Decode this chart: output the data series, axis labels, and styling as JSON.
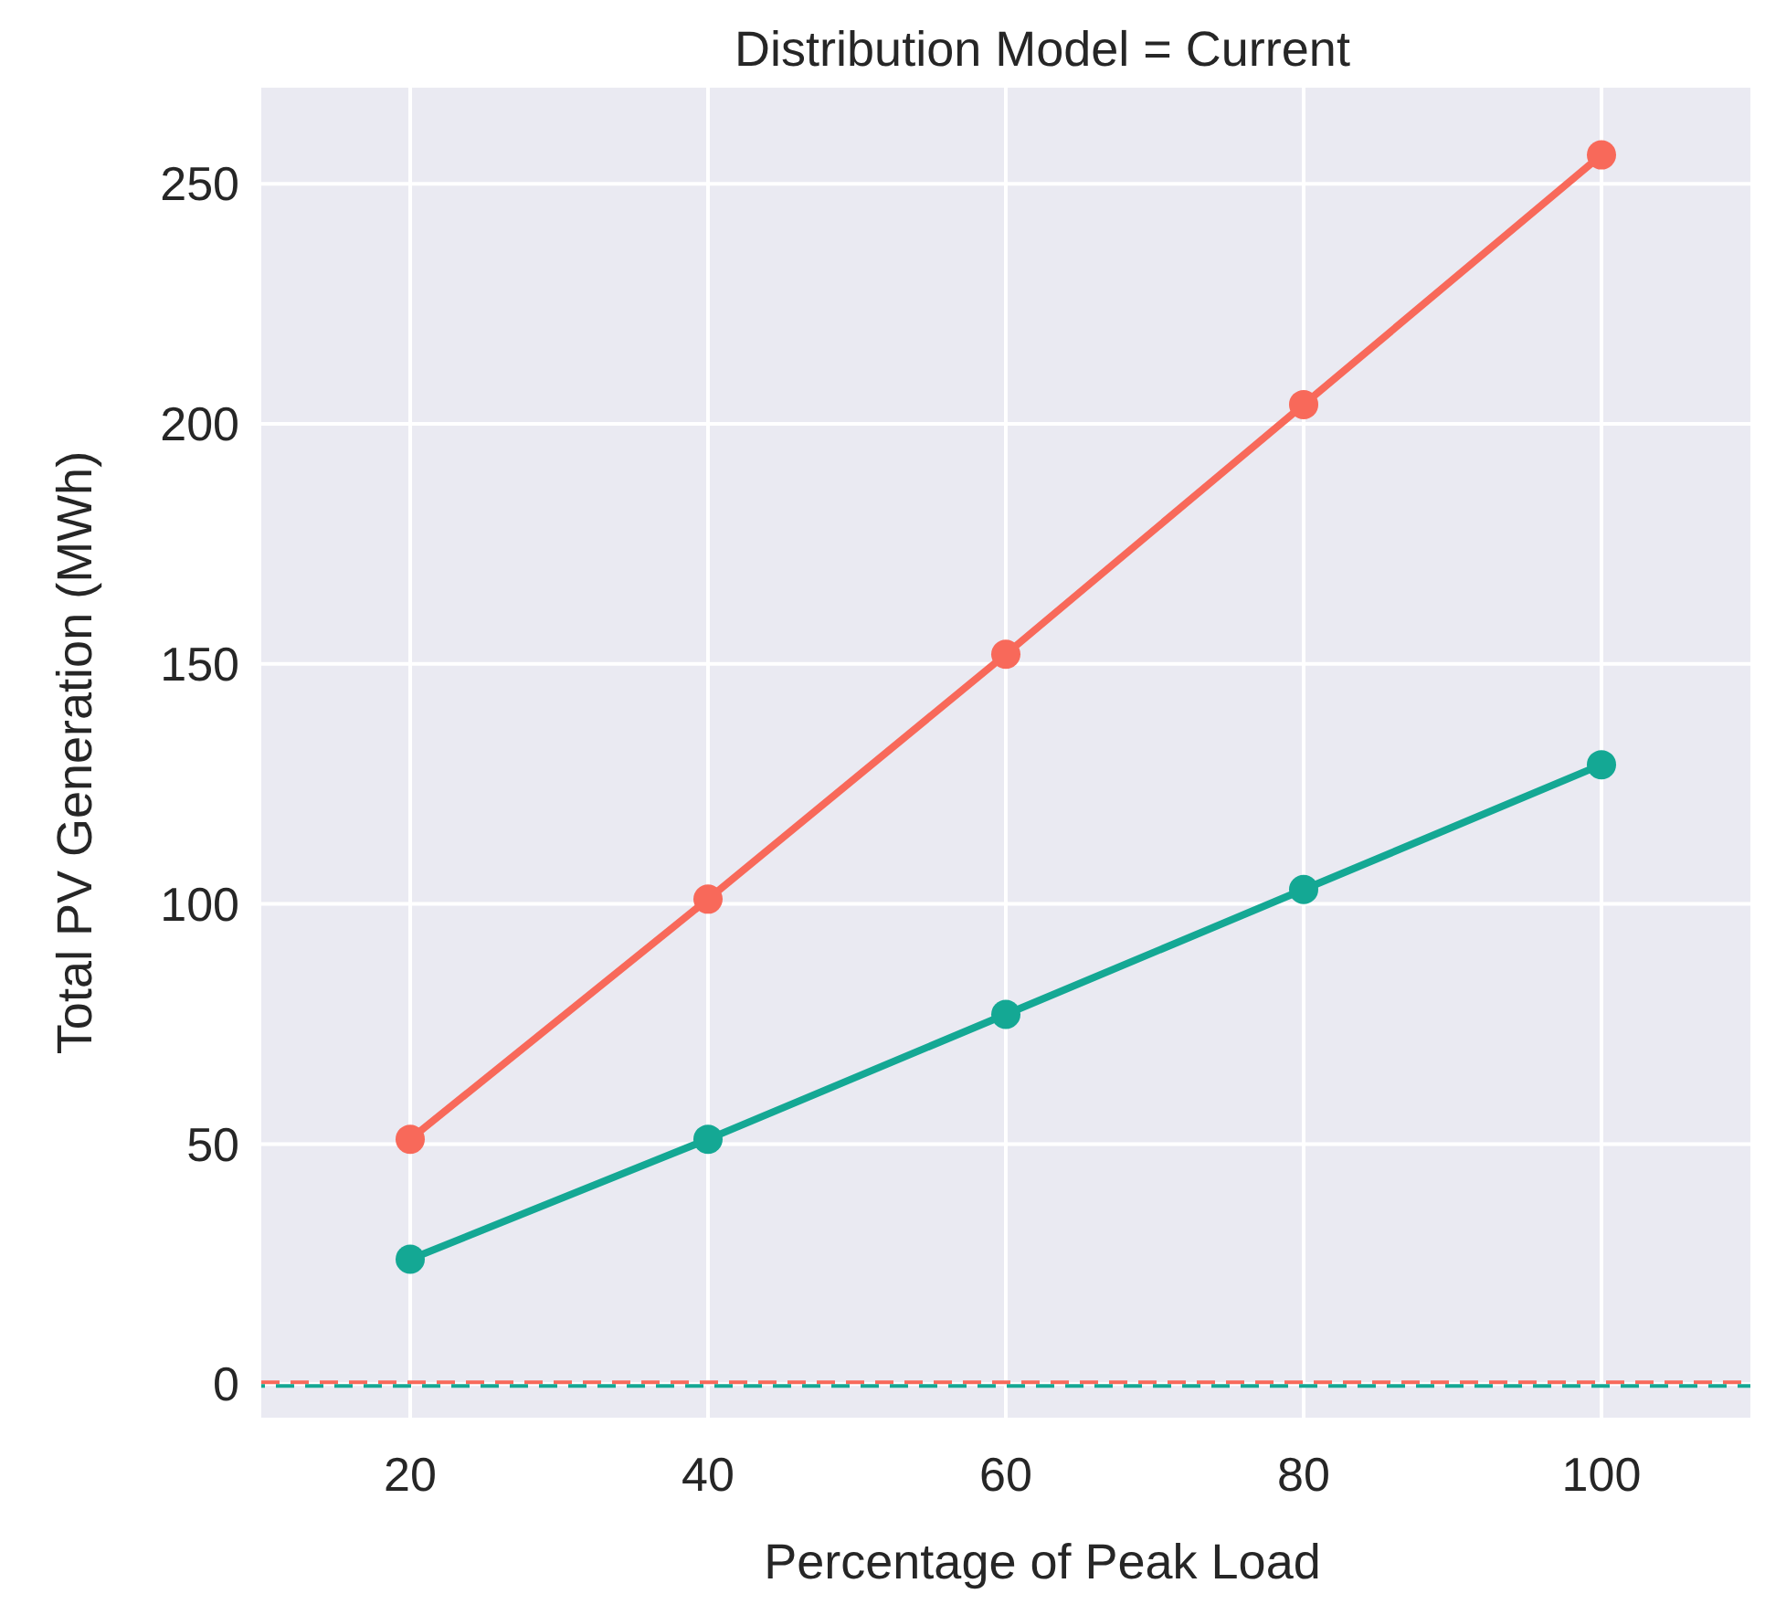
{
  "chart_data": {
    "type": "line",
    "title": "Distribution Model = Current",
    "xlabel": "Percentage of Peak Load",
    "ylabel": "Total PV Generation (MWh)",
    "x": [
      20,
      40,
      60,
      80,
      100
    ],
    "series": [
      {
        "color": "#f8695a",
        "values": [
          51,
          101,
          152,
          204,
          256
        ]
      },
      {
        "color": "#14a894",
        "values": [
          26,
          51,
          77,
          103,
          129
        ]
      }
    ],
    "xlim": [
      10,
      110
    ],
    "xticks": [
      20,
      40,
      60,
      80,
      100
    ],
    "ylim": [
      -7,
      270
    ],
    "yticks": [
      0,
      50,
      100,
      150,
      200,
      250
    ],
    "ref_lines": [
      {
        "axis": "y",
        "value": 0,
        "color": "#f8695a",
        "line_style": "dashed"
      },
      {
        "axis": "y",
        "value": 0,
        "color": "#14a894",
        "line_style": "dashed"
      }
    ],
    "grid": true,
    "marker": "circle",
    "line_style": "solid"
  }
}
